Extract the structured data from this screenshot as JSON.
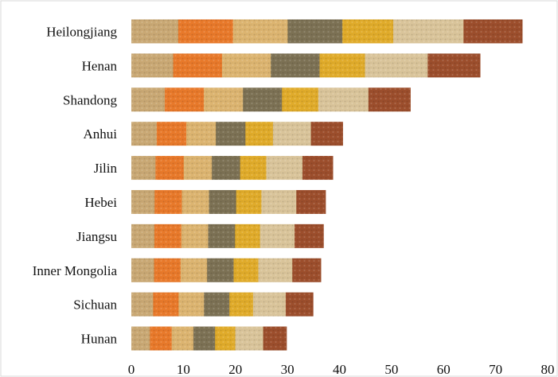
{
  "chart_data": {
    "type": "bar",
    "orientation": "horizontal",
    "categories": [
      "Heilongjiang",
      "Henan",
      "Shandong",
      "Anhui",
      "Jilin",
      "Hebei",
      "Jiangsu",
      "Inner Mongolia",
      "Sichuan",
      "Hunan"
    ],
    "values": [
      75.1,
      67.0,
      53.6,
      40.6,
      38.7,
      37.3,
      36.9,
      36.4,
      34.9,
      29.8
    ],
    "title": "",
    "xlabel": "",
    "ylabel": "",
    "xlim": [
      0,
      80
    ],
    "xticks": [
      "0",
      "10",
      "20",
      "30",
      "40",
      "50",
      "60",
      "70",
      "80"
    ],
    "grid": false,
    "legend": "none",
    "colors": {
      "wheat": "#c9a874",
      "corn": "#e8792a",
      "rice": "#dcb470",
      "grass": "#7c7154",
      "millet": "#e0ab2a",
      "oat": "#d9c49a",
      "sorghum": "#9c4e2c",
      "border": "#d9d9d9"
    }
  }
}
